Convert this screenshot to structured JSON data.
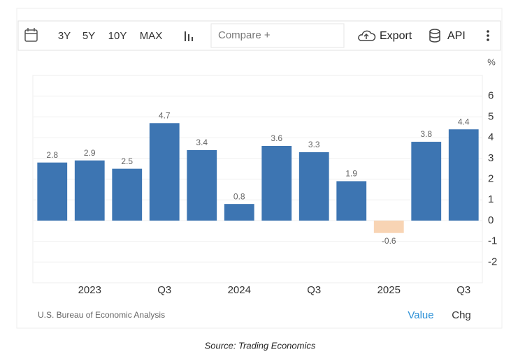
{
  "toolbar": {
    "ranges": [
      "3Y",
      "5Y",
      "10Y",
      "MAX"
    ],
    "compare": "Compare +",
    "export": "Export",
    "api": "API"
  },
  "chart_data": {
    "type": "bar",
    "y_unit": "%",
    "categories": [
      null,
      "2023",
      null,
      "Q3",
      null,
      "2024",
      null,
      "Q3",
      null,
      "2025",
      null,
      "Q3"
    ],
    "values": [
      2.8,
      2.9,
      2.5,
      4.7,
      3.4,
      0.8,
      3.6,
      3.3,
      1.9,
      -0.6,
      3.8,
      4.4
    ],
    "color": "#3d75b2",
    "negative_color": "#f8d4b4",
    "ylim": [
      -3,
      7
    ],
    "yticks": [
      -2,
      -1,
      0,
      1,
      2,
      3,
      4,
      5,
      6
    ],
    "grid": true,
    "source": "U.S. Bureau of Economic Analysis"
  },
  "footer": {
    "value": "Value",
    "chg": "Chg"
  },
  "caption": "Source: Trading Economics"
}
